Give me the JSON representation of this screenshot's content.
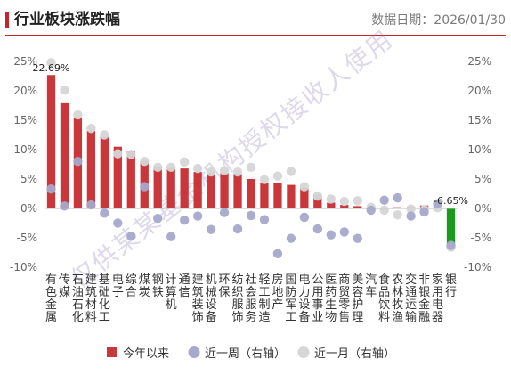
{
  "header": {
    "title": "行业板块涨跌幅",
    "date_label": "数据日期：2026/01/30"
  },
  "watermark_text": "仅供某某基金机构授权接收人使用",
  "colors": {
    "bar_positive": "#c9373a",
    "bar_negative": "#1a9a1a",
    "week_dot": "#a8a8cc",
    "month_dot": "#d6d6d6",
    "title_accent": "#c8242b"
  },
  "chart_data": {
    "type": "bar",
    "categories": [
      "有色金属",
      "传媒",
      "石油石化",
      "建筑材料",
      "基础化工",
      "电子",
      "综合",
      "煤炭",
      "钢铁",
      "计算机",
      "通信",
      "建筑装饰",
      "机械设备",
      "环保",
      "纺织服饰",
      "社会服务",
      "轻工制造",
      "房地产",
      "国防军工",
      "电力设备",
      "公用事业",
      "医药生物",
      "商贸零售",
      "美容护理",
      "汽车",
      "食品饮料",
      "农林牧渔",
      "交通运输",
      "非银金融",
      "家用电器",
      "银行"
    ],
    "series": [
      {
        "name": "今年以来",
        "axis": "left",
        "mark": "bar",
        "values": [
          22.69,
          17.9,
          15.5,
          13.2,
          12.2,
          10.5,
          9.8,
          8.1,
          7.0,
          6.9,
          6.8,
          6.2,
          6.0,
          6.0,
          5.9,
          5.0,
          4.3,
          4.3,
          4.0,
          3.5,
          2.4,
          1.0,
          0.6,
          0.4,
          -0.1,
          -0.2,
          0.2,
          0.3,
          0.5,
          0.6,
          -6.65
        ]
      },
      {
        "name": "近一周（右轴）",
        "axis": "right",
        "mark": "dot",
        "values": [
          3.3,
          0.4,
          8.0,
          0.6,
          -0.8,
          -2.5,
          -4.7,
          3.7,
          -1.7,
          -4.8,
          -2.0,
          -1.3,
          -3.6,
          -0.7,
          -3.5,
          -1.2,
          -1.9,
          -7.7,
          -5.1,
          -1.5,
          -3.5,
          -4.5,
          -4.0,
          -5.1,
          -0.3,
          1.4,
          1.8,
          -1.3,
          -0.6,
          0.8,
          -6.3
        ]
      },
      {
        "name": "近一月（右轴）",
        "axis": "right",
        "mark": "dot",
        "values": [
          24.8,
          20.1,
          15.9,
          13.6,
          12.5,
          9.3,
          9.2,
          8.0,
          7.0,
          7.0,
          7.9,
          6.8,
          6.2,
          6.4,
          6.2,
          7.0,
          4.9,
          5.5,
          6.3,
          3.7,
          2.1,
          1.6,
          1.2,
          1.3,
          0.2,
          -0.3,
          -1.1,
          -0.1,
          -0.2,
          0.1,
          -6.6
        ]
      }
    ],
    "ylim": [
      -10,
      25
    ],
    "yticks": [
      -10,
      -5,
      0,
      5,
      10,
      15,
      20,
      25
    ],
    "ytick_labels": [
      "-10%",
      "-5%",
      "0%",
      "5%",
      "10%",
      "15%",
      "20%",
      "25%"
    ],
    "y2lim": [
      -10,
      25
    ],
    "y2ticks": [
      -10,
      -5,
      0,
      5,
      10,
      15,
      20,
      25
    ],
    "y2tick_labels": [
      "-10%",
      "-5%",
      "0%",
      "5%",
      "10%",
      "15%",
      "20%",
      "25%"
    ],
    "data_labels": [
      {
        "category": "有色金属",
        "text": "22.69%"
      },
      {
        "category": "银行",
        "text": "-6.65%"
      }
    ],
    "legend_position": "bottom",
    "grid": false
  }
}
